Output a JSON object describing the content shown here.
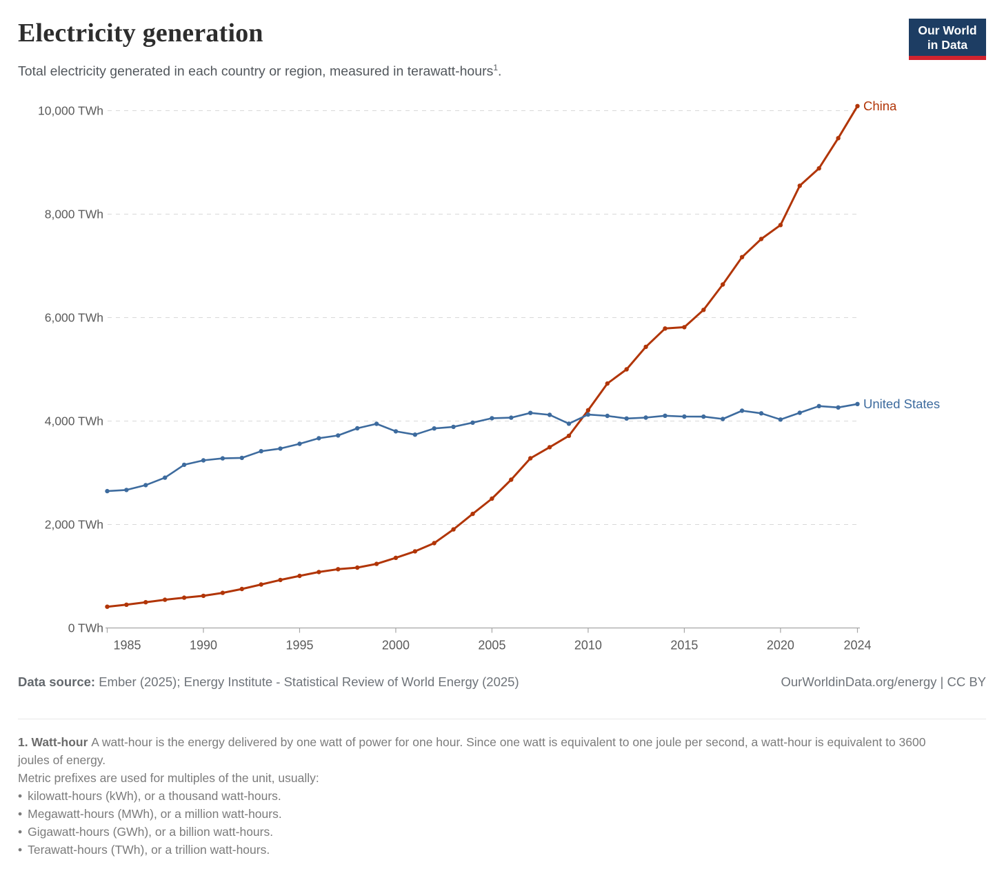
{
  "header": {
    "title": "Electricity generation",
    "subtitle": "Total electricity generated in each country or region, measured in terawatt-hours",
    "subtitle_sup": "1",
    "subtitle_period": "."
  },
  "logo": {
    "line1": "Our World",
    "line2": "in Data",
    "bg_color": "#1d3d63",
    "underline_color": "#d0232e"
  },
  "chart_data": {
    "type": "line",
    "title": "Electricity generation",
    "unit": "TWh",
    "x_start_year": 1985,
    "years": [
      1985,
      1986,
      1987,
      1988,
      1989,
      1990,
      1991,
      1992,
      1993,
      1994,
      1995,
      1996,
      1997,
      1998,
      1999,
      2000,
      2001,
      2002,
      2003,
      2004,
      2005,
      2006,
      2007,
      2008,
      2009,
      2010,
      2011,
      2012,
      2013,
      2014,
      2015,
      2016,
      2017,
      2018,
      2019,
      2020,
      2021,
      2022,
      2023,
      2024
    ],
    "series": [
      {
        "name": "China",
        "color": "#B13507",
        "values": [
          411,
          450,
          497,
          545,
          585,
          621,
          678,
          754,
          840,
          928,
          1007,
          1081,
          1136,
          1166,
          1239,
          1356,
          1481,
          1640,
          1905,
          2205,
          2500,
          2866,
          3280,
          3495,
          3715,
          4210,
          4725,
          5000,
          5435,
          5790,
          5815,
          6150,
          6640,
          7170,
          7520,
          7790,
          8550,
          8886,
          9470,
          10090
        ]
      },
      {
        "name": "United States",
        "color": "#3D6B9E",
        "values": [
          2645,
          2668,
          2762,
          2905,
          3155,
          3240,
          3278,
          3288,
          3418,
          3468,
          3560,
          3668,
          3722,
          3860,
          3946,
          3802,
          3737,
          3858,
          3888,
          3970,
          4055,
          4065,
          4157,
          4120,
          3950,
          4125,
          4100,
          4049,
          4066,
          4103,
          4087,
          4085,
          4040,
          4200,
          4150,
          4030,
          4160,
          4290,
          4263,
          4330
        ]
      }
    ],
    "y_ticks": [
      {
        "value": 0,
        "label": "0 TWh"
      },
      {
        "value": 2000,
        "label": "2,000 TWh"
      },
      {
        "value": 4000,
        "label": "4,000 TWh"
      },
      {
        "value": 6000,
        "label": "6,000 TWh"
      },
      {
        "value": 8000,
        "label": "8,000 TWh"
      },
      {
        "value": 10000,
        "label": "10,000 TWh"
      }
    ],
    "x_ticks": [
      {
        "year": 1985,
        "label": "1985"
      },
      {
        "year": 1990,
        "label": "1990"
      },
      {
        "year": 1995,
        "label": "1995"
      },
      {
        "year": 2000,
        "label": "2000"
      },
      {
        "year": 2005,
        "label": "2005"
      },
      {
        "year": 2010,
        "label": "2010"
      },
      {
        "year": 2015,
        "label": "2015"
      },
      {
        "year": 2020,
        "label": "2020"
      },
      {
        "year": 2024,
        "label": "2024"
      }
    ],
    "ylim": [
      0,
      10000
    ],
    "xlabel": "",
    "ylabel": "",
    "grid": "dashed-horizontal",
    "legend": "end-of-line-labels",
    "grid_color": "#D8D8D8",
    "axis_color": "#A5A5A5",
    "tick_text_color": "#5B5B5B"
  },
  "footer": {
    "data_source_label": "Data source:",
    "data_source_text": "Ember (2025); Energy Institute - Statistical Review of World Energy (2025)",
    "license_link": "OurWorldinData.org/energy | CC BY"
  },
  "footnote": {
    "ref": "1. Watt-hour",
    "text": "A watt-hour is the energy delivered by one watt of power for one hour. Since one watt is equivalent to one joule per second, a watt-hour is equivalent to 3600 joules of energy.",
    "prefix_note": "Metric prefixes are used for multiples of the unit, usually:",
    "bullet_icon": "•",
    "bullets": [
      "kilowatt-hours (kWh), or a thousand watt-hours.",
      "Megawatt-hours (MWh), or a million watt-hours.",
      "Gigawatt-hours (GWh), or a billion watt-hours.",
      "Terawatt-hours (TWh), or a trillion watt-hours."
    ]
  }
}
